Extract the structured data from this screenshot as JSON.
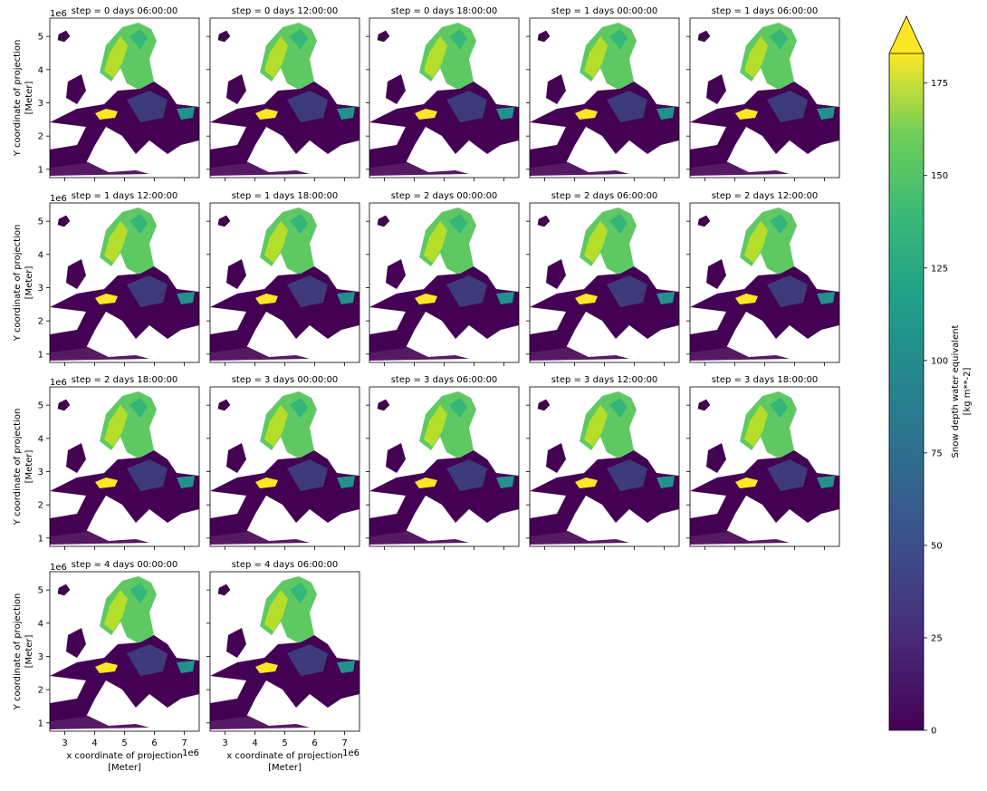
{
  "chart_data": {
    "type": "facet-map",
    "facets": [
      "step = 0 days 06:00:00",
      "step = 0 days 12:00:00",
      "step = 0 days 18:00:00",
      "step = 1 days 00:00:00",
      "step = 1 days 06:00:00",
      "step = 1 days 12:00:00",
      "step = 1 days 18:00:00",
      "step = 2 days 00:00:00",
      "step = 2 days 06:00:00",
      "step = 2 days 12:00:00",
      "step = 2 days 18:00:00",
      "step = 3 days 00:00:00",
      "step = 3 days 06:00:00",
      "step = 3 days 12:00:00",
      "step = 3 days 18:00:00",
      "step = 4 days 00:00:00",
      "step = 4 days 06:00:00"
    ],
    "xlabel": [
      "x coordinate of projection",
      "[Meter]"
    ],
    "ylabel": [
      "Y coordinate of projection",
      "[Meter]"
    ],
    "axis_offset": "1e6",
    "xlim": [
      2.5,
      7.5
    ],
    "xticks": [
      3,
      4,
      5,
      6,
      7
    ],
    "ylim": [
      0.75,
      5.55
    ],
    "yticks": [
      1,
      2,
      3,
      4,
      5
    ],
    "colorbar": {
      "label": [
        "Snow depth water equivalent",
        "[kg m**-2]"
      ],
      "lim": [
        0,
        183
      ],
      "ticks": [
        0,
        25,
        50,
        75,
        100,
        125,
        150,
        175
      ]
    }
  }
}
